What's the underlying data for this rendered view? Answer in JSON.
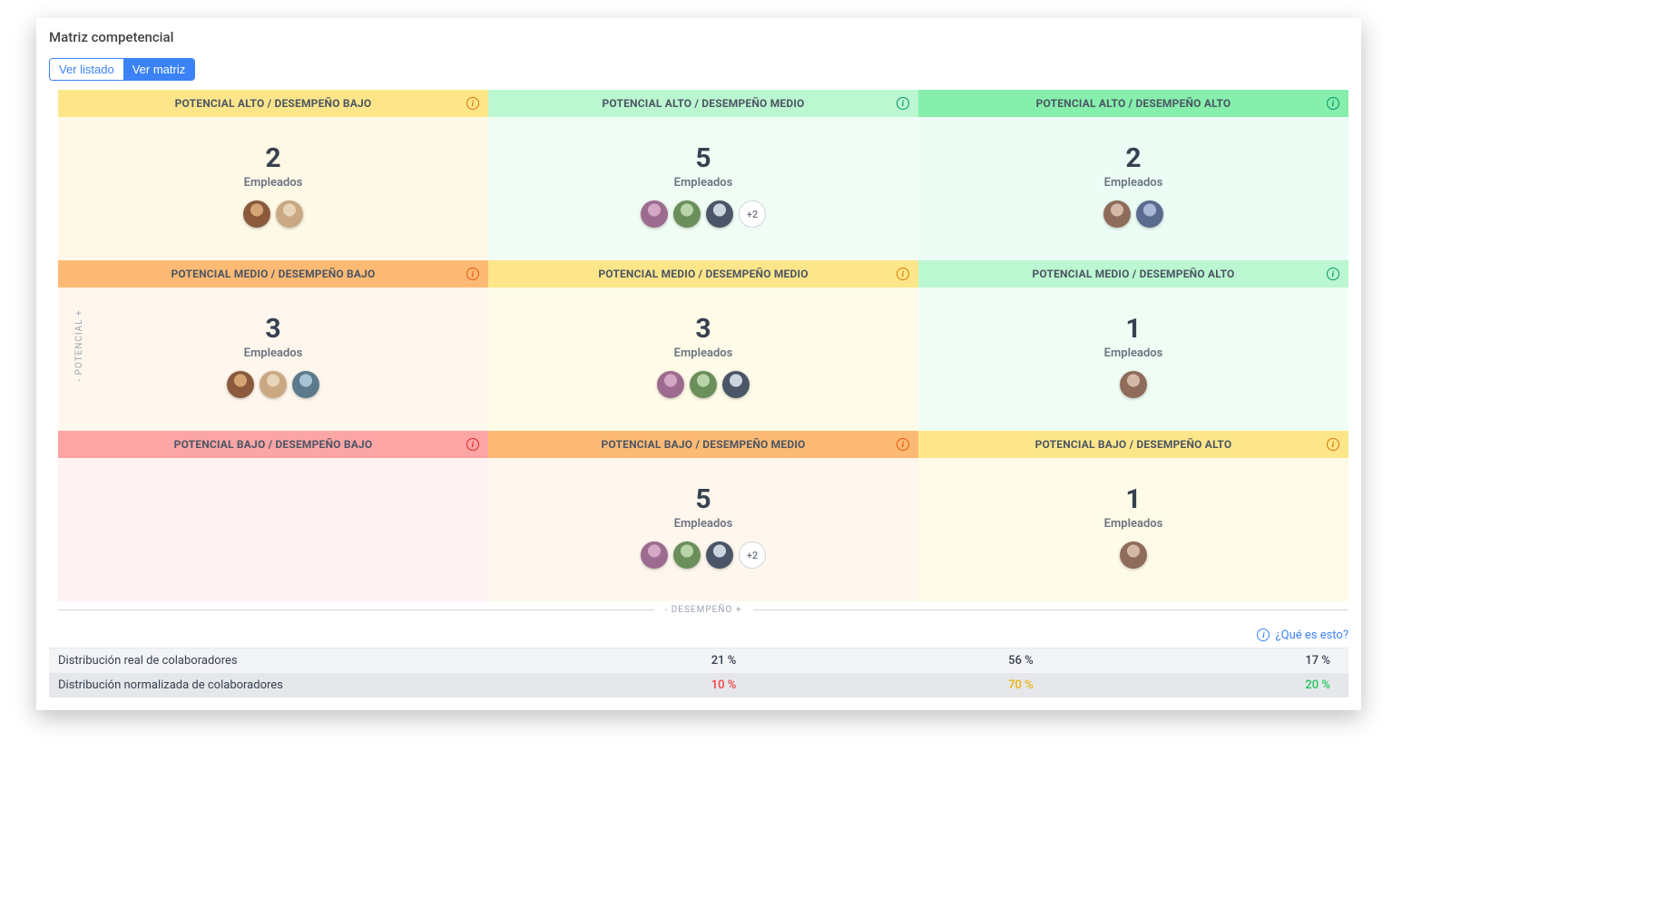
{
  "page_title": "Matriz competencial",
  "tabs": {
    "list": "Ver listado",
    "matrix": "Ver matriz"
  },
  "y_axis": "- POTENCIAL +",
  "x_axis": "- DESEMPEÑO +",
  "employees_label": "Empleados",
  "help_link": "¿Qué es esto?",
  "info_glyph": "i",
  "avatar_palette": [
    [
      "#8b5a3c",
      "#d4a574"
    ],
    [
      "#c9a882",
      "#e8d4b8"
    ],
    [
      "#5b7a8c",
      "#a8c4d4"
    ],
    [
      "#9d6b8f",
      "#d4a8c4"
    ],
    [
      "#6b8f5a",
      "#b8d4a8"
    ],
    [
      "#4a5568",
      "#cbd5e0"
    ],
    [
      "#8f6b5a",
      "#d4b8a8"
    ],
    [
      "#5a6b8f",
      "#a8b8d4"
    ],
    [
      "#8f5a6b",
      "#d4a8b8"
    ]
  ],
  "cells": [
    {
      "title": "POTENCIAL ALTO / DESEMPEÑO BAJO",
      "header_bg": "#fde68a",
      "body_bg": "#fef9e7",
      "count": 2,
      "avatars": 2,
      "more": null,
      "info_color": "#d97706"
    },
    {
      "title": "POTENCIAL ALTO / DESEMPEÑO MEDIO",
      "header_bg": "#bbf7d0",
      "body_bg": "#f0fdf4",
      "count": 5,
      "avatars": 3,
      "more": "+2",
      "info_color": "#059669"
    },
    {
      "title": "POTENCIAL ALTO / DESEMPEÑO ALTO",
      "header_bg": "#86efac",
      "body_bg": "#ecfdf5",
      "count": 2,
      "avatars": 2,
      "more": null,
      "info_color": "#059669"
    },
    {
      "title": "POTENCIAL MEDIO / DESEMPEÑO BAJO",
      "header_bg": "#fdba74",
      "body_bg": "#fff7ed",
      "count": 3,
      "avatars": 3,
      "more": null,
      "info_color": "#ea580c"
    },
    {
      "title": "POTENCIAL MEDIO / DESEMPEÑO MEDIO",
      "header_bg": "#fde68a",
      "body_bg": "#fefce8",
      "count": 3,
      "avatars": 3,
      "more": null,
      "info_color": "#d97706"
    },
    {
      "title": "POTENCIAL MEDIO / DESEMPEÑO ALTO",
      "header_bg": "#bbf7d0",
      "body_bg": "#f0fdf4",
      "count": 1,
      "avatars": 1,
      "more": null,
      "info_color": "#059669"
    },
    {
      "title": "POTENCIAL BAJO / DESEMPEÑO BAJO",
      "header_bg": "#fca5a5",
      "body_bg": "#fef2f2",
      "count": null,
      "avatars": 0,
      "more": null,
      "info_color": "#dc2626"
    },
    {
      "title": "POTENCIAL BAJO / DESEMPEÑO MEDIO",
      "header_bg": "#fdba74",
      "body_bg": "#fff7ed",
      "count": 5,
      "avatars": 3,
      "more": "+2",
      "info_color": "#ea580c"
    },
    {
      "title": "POTENCIAL BAJO / DESEMPEÑO ALTO",
      "header_bg": "#fde68a",
      "body_bg": "#fefce8",
      "count": 1,
      "avatars": 1,
      "more": null,
      "info_color": "#d97706"
    }
  ],
  "distribution": {
    "real_label": "Distribución real de colaboradores",
    "norm_label": "Distribución normalizada de colaboradores",
    "real": [
      "21 %",
      "56 %",
      "17 %"
    ],
    "norm": [
      "10 %",
      "70 %",
      "20 %"
    ],
    "real_color": "#374151",
    "norm_colors": [
      "#ef4444",
      "#eab308",
      "#22c55e"
    ]
  }
}
